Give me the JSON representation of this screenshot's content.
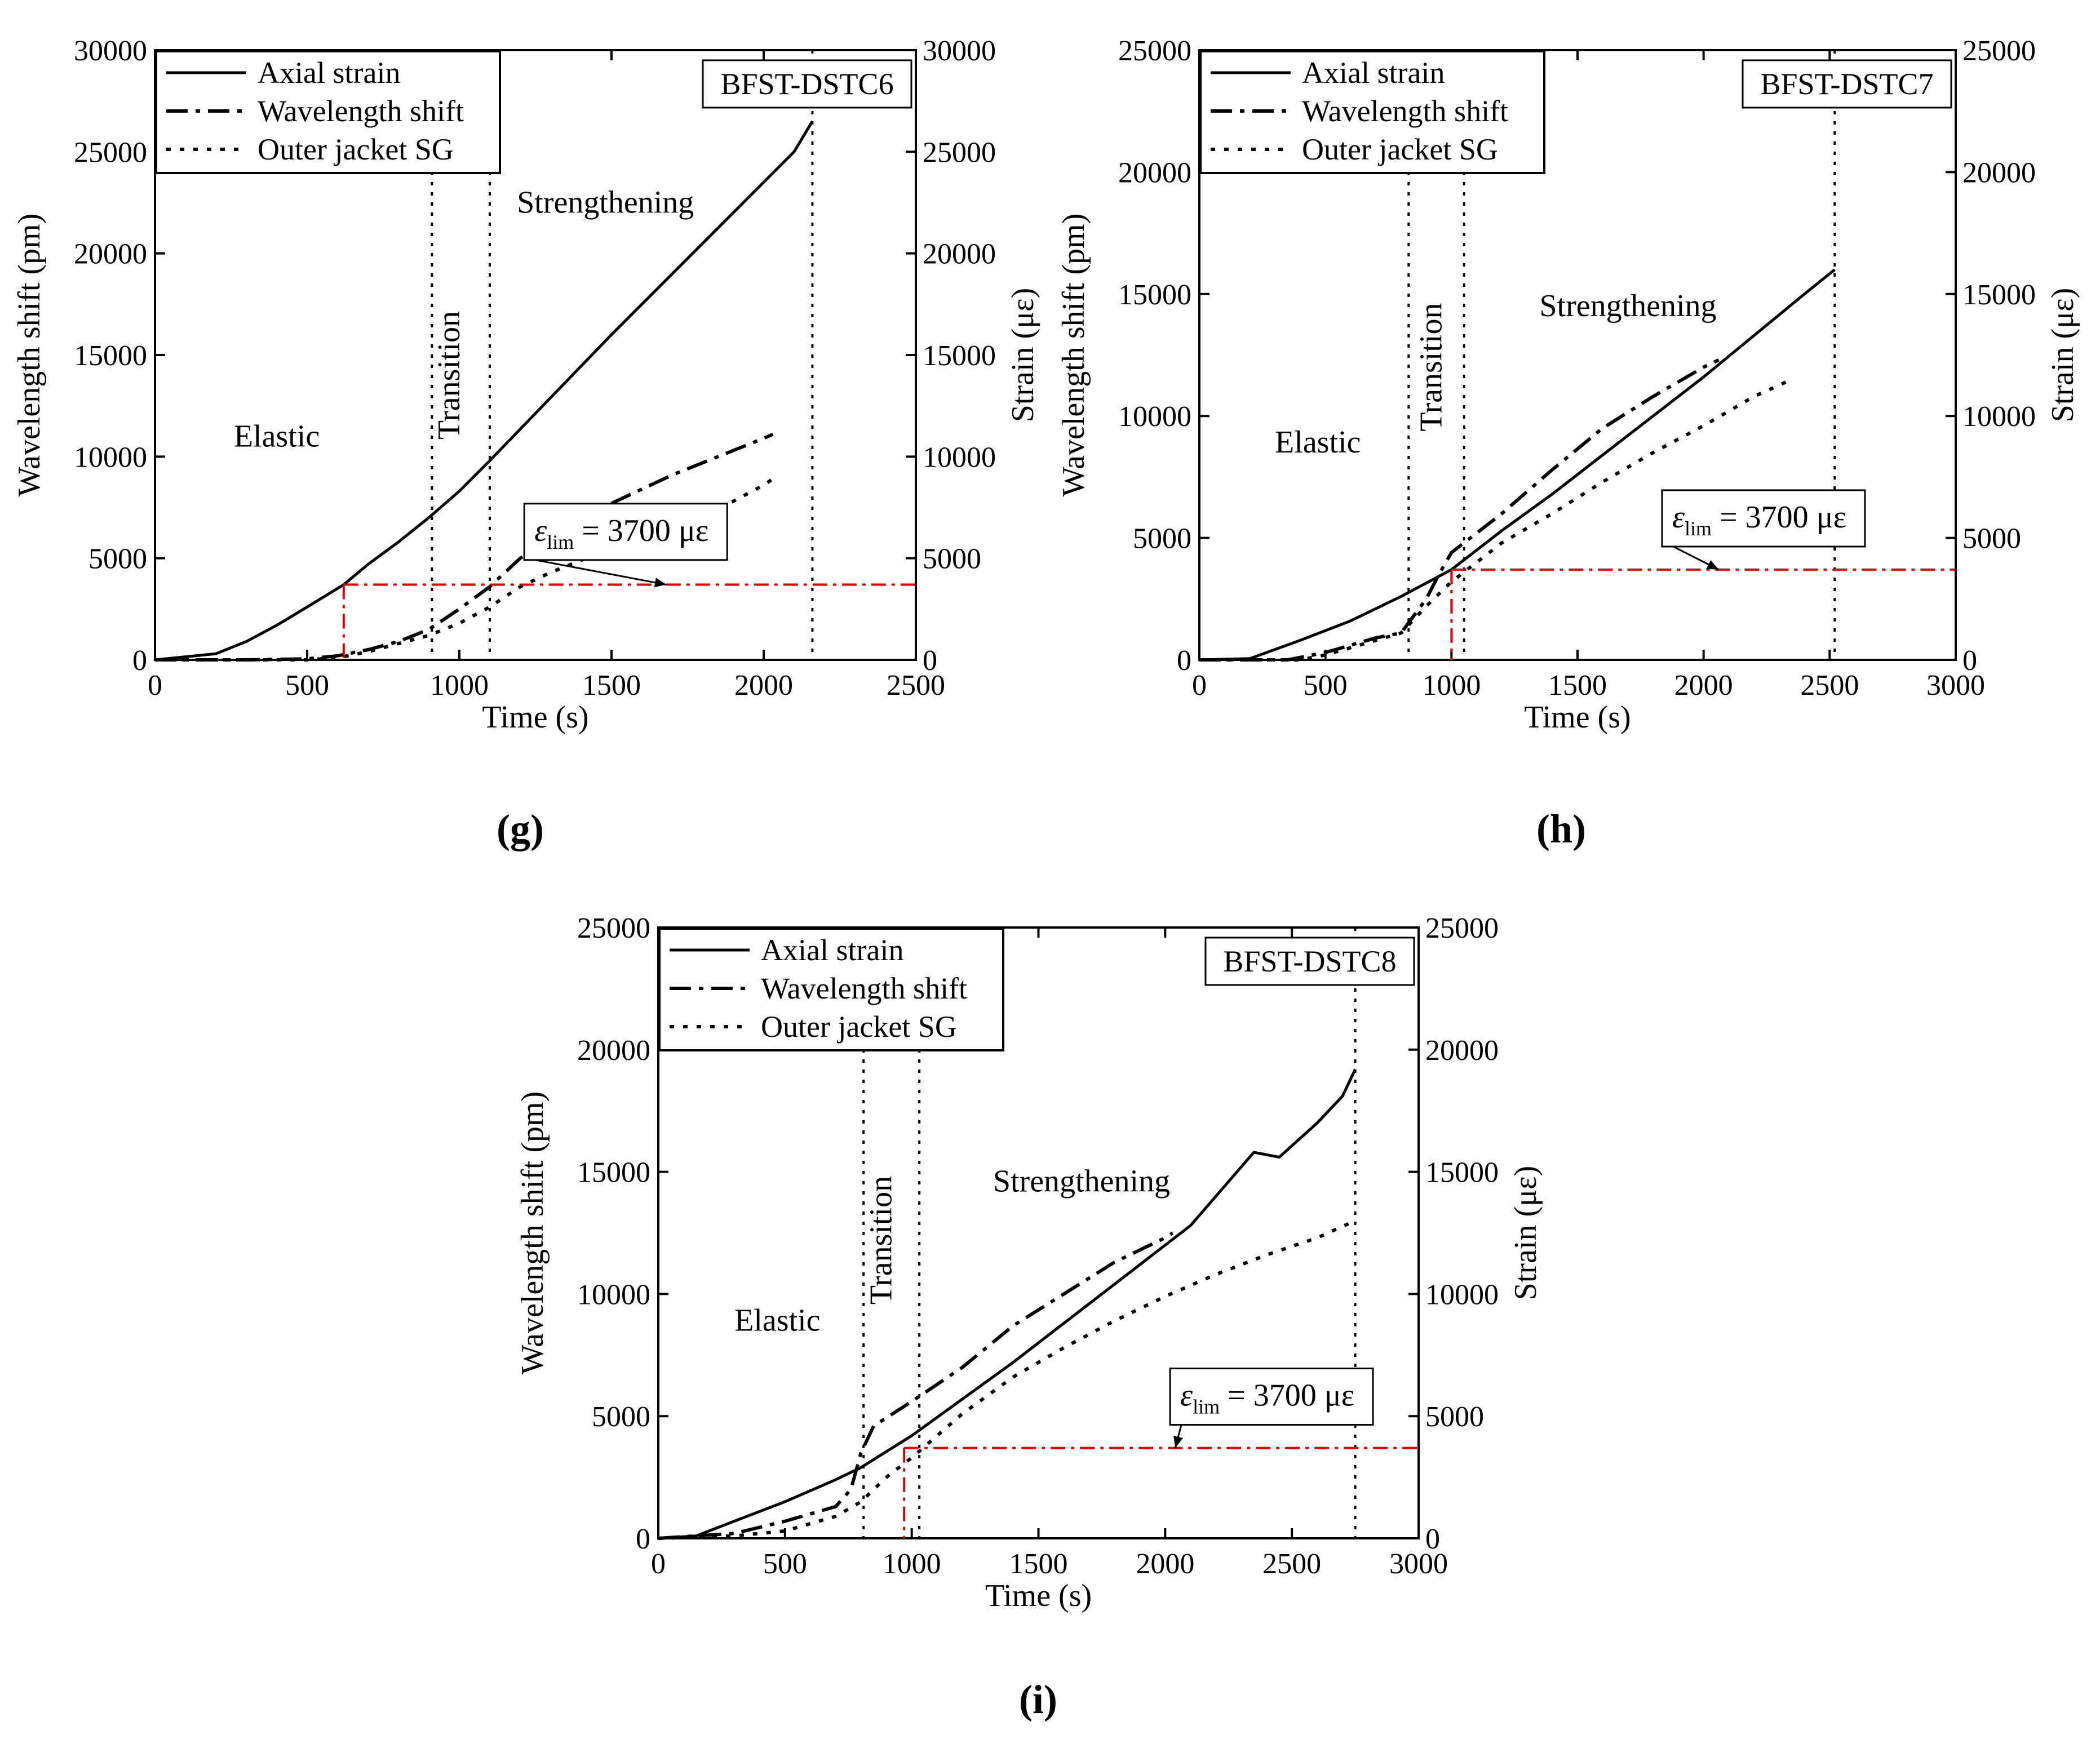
{
  "figure": {
    "colors": {
      "ink": "#000000",
      "limit": "#e00000",
      "background": "#ffffff"
    },
    "legend_style": {
      "Axial strain": "solid",
      "Wavelength shift": "dashdot",
      "Outer jacket SG": "dotted"
    }
  },
  "chart_data": [
    {
      "type": "line",
      "panel_label": "g",
      "title": "BFST-DSTC6",
      "xlabel": "Time (s)",
      "ylabel": "Wavelength shift (pm)",
      "y2label": "Strain (με)",
      "xlim": [
        0,
        2500
      ],
      "ylim": [
        0,
        30000
      ],
      "y2lim": [
        0,
        30000
      ],
      "xticks": [
        0,
        500,
        1000,
        1500,
        2000,
        2500
      ],
      "yticks": [
        0,
        5000,
        10000,
        15000,
        20000,
        25000,
        30000
      ],
      "y2ticks": [
        0,
        5000,
        10000,
        15000,
        20000,
        25000,
        30000
      ],
      "legend": [
        "Axial strain",
        "Wavelength shift",
        "Outer jacket SG"
      ],
      "region_labels": [
        {
          "text": "Elastic",
          "x": 400,
          "y": 10500,
          "rotate": 0
        },
        {
          "text": "Transition",
          "x": 1000,
          "y": 14000,
          "rotate": -90
        },
        {
          "text": "Strengthening",
          "x": 1480,
          "y": 22000,
          "rotate": 0
        }
      ],
      "vlines": [
        910,
        1100,
        2160
      ],
      "limit": {
        "label_main": "ε",
        "label_sub": "lim",
        "label_rest": " = 3700 με",
        "value": 3700,
        "x_start": 620,
        "x_end": 2500,
        "label_x": 1880,
        "label_y": 6300,
        "arrow_to_x": 1680
      },
      "series": [
        {
          "name": "Axial strain",
          "style": "solid",
          "x": [
            0,
            100,
            200,
            300,
            400,
            500,
            620,
            700,
            800,
            900,
            1000,
            1100,
            1300,
            1500,
            1700,
            1900,
            2100,
            2160
          ],
          "y": [
            0,
            150,
            300,
            900,
            1700,
            2600,
            3700,
            4700,
            5800,
            7000,
            8300,
            9800,
            12900,
            16000,
            19000,
            22000,
            25000,
            26500
          ]
        },
        {
          "name": "Wavelength shift",
          "style": "dashdot",
          "x": [
            0,
            300,
            500,
            600,
            700,
            800,
            900,
            1000,
            1100,
            1200,
            1300,
            1400,
            1500,
            1600,
            1700,
            1800,
            1900,
            2000,
            2030
          ],
          "y": [
            0,
            0,
            50,
            200,
            500,
            900,
            1500,
            2500,
            3600,
            5000,
            6000,
            6900,
            7700,
            8400,
            9100,
            9700,
            10300,
            10900,
            11100
          ]
        },
        {
          "name": "Outer jacket SG",
          "style": "dotted",
          "x": [
            0,
            500,
            600,
            700,
            800,
            900,
            1000,
            1100,
            1200,
            1300,
            1400,
            1500,
            1600,
            1700,
            1800,
            1900,
            2000,
            2030
          ],
          "y": [
            0,
            0,
            100,
            400,
            800,
            1200,
            1800,
            2600,
            3600,
            4300,
            4900,
            5500,
            6000,
            6600,
            7200,
            7800,
            8600,
            8900
          ]
        }
      ]
    },
    {
      "type": "line",
      "panel_label": "h",
      "title": "BFST-DSTC7",
      "xlabel": "Time (s)",
      "ylabel": "Wavelength shift (pm)",
      "y2label": "Strain (με)",
      "xlim": [
        0,
        3000
      ],
      "ylim": [
        0,
        25000
      ],
      "y2lim": [
        0,
        25000
      ],
      "xticks": [
        0,
        500,
        1000,
        1500,
        2000,
        2500,
        3000
      ],
      "yticks": [
        0,
        5000,
        10000,
        15000,
        20000,
        25000
      ],
      "y2ticks": [
        0,
        5000,
        10000,
        15000,
        20000,
        25000
      ],
      "legend": [
        "Axial strain",
        "Wavelength shift",
        "Outer jacket SG"
      ],
      "region_labels": [
        {
          "text": "Elastic",
          "x": 470,
          "y": 8500,
          "rotate": 0
        },
        {
          "text": "Transition",
          "x": 960,
          "y": 12000,
          "rotate": -90
        },
        {
          "text": "Strengthening",
          "x": 1700,
          "y": 14100,
          "rotate": 0
        }
      ],
      "vlines": [
        830,
        1050,
        2520
      ],
      "limit": {
        "label_main": "ε",
        "label_sub": "lim",
        "label_rest": " = 3700 με",
        "value": 3700,
        "x_start": 1000,
        "x_end": 3000,
        "label_x": 2640,
        "label_y": 5800,
        "arrow_to_x": 2060
      },
      "series": [
        {
          "name": "Axial strain",
          "style": "solid",
          "x": [
            0,
            200,
            400,
            600,
            800,
            1000,
            1200,
            1400,
            1600,
            1800,
            2000,
            2200,
            2400,
            2520
          ],
          "y": [
            0,
            50,
            800,
            1600,
            2600,
            3700,
            5300,
            6800,
            8400,
            10000,
            11600,
            13300,
            15000,
            16000
          ]
        },
        {
          "name": "Wavelength shift",
          "style": "dashdot",
          "x": [
            0,
            350,
            500,
            600,
            700,
            800,
            900,
            950,
            1000,
            1050,
            1200,
            1400,
            1600,
            1800,
            2000,
            2060
          ],
          "y": [
            0,
            0,
            300,
            600,
            900,
            1100,
            2500,
            3500,
            4400,
            4800,
            6000,
            7800,
            9500,
            10800,
            12000,
            12300
          ]
        },
        {
          "name": "Outer jacket SG",
          "style": "dotted",
          "x": [
            0,
            400,
            500,
            600,
            700,
            800,
            900,
            1000,
            1100,
            1200,
            1400,
            1600,
            1800,
            2000,
            2200,
            2350
          ],
          "y": [
            0,
            0,
            200,
            500,
            800,
            1100,
            2200,
            3200,
            4000,
            4800,
            6000,
            7300,
            8500,
            9600,
            10800,
            11500
          ]
        }
      ]
    },
    {
      "type": "line",
      "panel_label": "i",
      "title": "BFST-DSTC8",
      "xlabel": "Time (s)",
      "ylabel": "Wavelength shift (pm)",
      "y2label": "Strain (με)",
      "xlim": [
        0,
        3000
      ],
      "ylim": [
        0,
        25000
      ],
      "y2lim": [
        0,
        25000
      ],
      "xticks": [
        0,
        500,
        1000,
        1500,
        2000,
        2500,
        3000
      ],
      "yticks": [
        0,
        5000,
        10000,
        15000,
        20000,
        25000
      ],
      "y2ticks": [
        0,
        5000,
        10000,
        15000,
        20000,
        25000
      ],
      "legend": [
        "Axial strain",
        "Wavelength shift",
        "Outer jacket SG"
      ],
      "region_labels": [
        {
          "text": "Elastic",
          "x": 470,
          "y": 8500,
          "rotate": 0
        },
        {
          "text": "Transition",
          "x": 920,
          "y": 12200,
          "rotate": -90
        },
        {
          "text": "Strengthening",
          "x": 1670,
          "y": 14200,
          "rotate": 0
        }
      ],
      "vlines": [
        810,
        1030,
        2750
      ],
      "limit": {
        "label_main": "ε",
        "label_sub": "lim",
        "label_rest": " = 3700 με",
        "value": 3700,
        "x_start": 970,
        "x_end": 3000,
        "label_x": 2820,
        "label_y": 5800,
        "arrow_to_x": 2040
      },
      "series": [
        {
          "name": "Axial strain",
          "style": "solid",
          "x": [
            0,
            150,
            300,
            500,
            700,
            800,
            1000,
            1200,
            1400,
            1600,
            1800,
            2000,
            2100,
            2200,
            2350,
            2450,
            2600,
            2700,
            2750
          ],
          "y": [
            0,
            100,
            700,
            1500,
            2400,
            2900,
            4200,
            5700,
            7200,
            8800,
            10400,
            12000,
            12800,
            14000,
            15800,
            15600,
            17000,
            18100,
            19200
          ]
        },
        {
          "name": "Wavelength shift",
          "style": "dashdot",
          "x": [
            0,
            300,
            500,
            700,
            760,
            800,
            850,
            1000,
            1200,
            1400,
            1600,
            1800,
            2000,
            2030
          ],
          "y": [
            0,
            200,
            700,
            1300,
            2000,
            3500,
            4600,
            5600,
            7000,
            8700,
            10000,
            11300,
            12300,
            12500
          ]
        },
        {
          "name": "Outer jacket SG",
          "style": "dotted",
          "x": [
            0,
            300,
            500,
            700,
            800,
            900,
            1000,
            1200,
            1400,
            1600,
            1800,
            2000,
            2200,
            2400,
            2600,
            2750
          ],
          "y": [
            0,
            100,
            300,
            900,
            1500,
            2500,
            3300,
            5100,
            6600,
            7800,
            8900,
            9900,
            10800,
            11600,
            12300,
            13000
          ]
        }
      ]
    }
  ]
}
